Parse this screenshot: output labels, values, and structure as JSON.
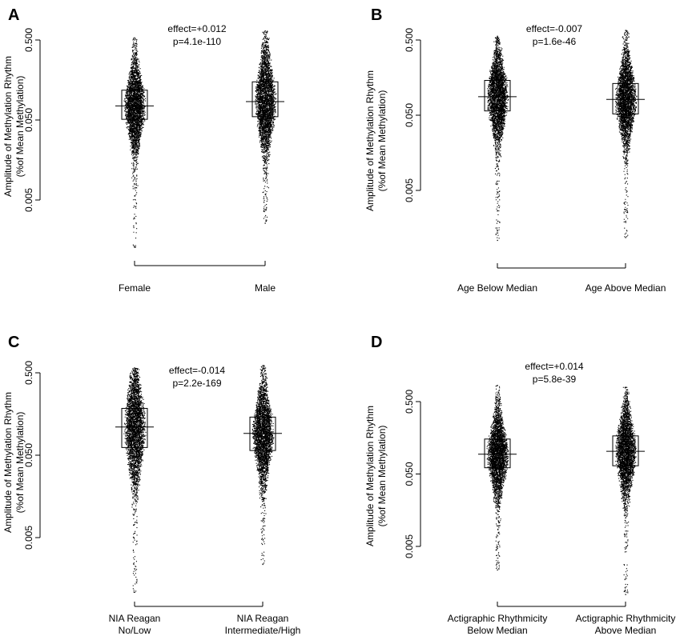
{
  "figure": {
    "y_axis_title_line1": "Amplitude of Methylation Rhythm",
    "y_axis_title_line2": "(%of Mean Methylation)"
  },
  "chart_data": [
    {
      "type": "scatter",
      "panel": "A",
      "annotation": [
        "effect=+0.012",
        "p=4.1e-110"
      ],
      "ylabel": "Amplitude of Methylation Rhythm (%of Mean Methylation)",
      "yscale": "log",
      "yticks": [
        "0.005",
        "0.050",
        "0.500"
      ],
      "groups": [
        {
          "label": [
            "Female"
          ],
          "median": 0.075,
          "q1": 0.051,
          "q3": 0.118,
          "min": 0.0013,
          "max": 0.54
        },
        {
          "label": [
            "Male"
          ],
          "median": 0.085,
          "q1": 0.055,
          "q3": 0.15,
          "min": 0.0026,
          "max": 0.66
        }
      ]
    },
    {
      "type": "scatter",
      "panel": "B",
      "annotation": [
        "effect=-0.007",
        "p=1.6e-46"
      ],
      "ylabel": "Amplitude of Methylation Rhythm (%of Mean Methylation)",
      "yscale": "log",
      "yticks": [
        "0.005",
        "0.050",
        "0.500"
      ],
      "groups": [
        {
          "label": [
            "Age Below Median"
          ],
          "median": 0.088,
          "q1": 0.057,
          "q3": 0.145,
          "min": 0.0011,
          "max": 0.57
        },
        {
          "label": [
            "Age Above Median"
          ],
          "median": 0.081,
          "q1": 0.052,
          "q3": 0.132,
          "min": 0.0012,
          "max": 0.68
        }
      ]
    },
    {
      "type": "scatter",
      "panel": "C",
      "annotation": [
        "effect=-0.014",
        "p=2.2e-169"
      ],
      "ylabel": "Amplitude of Methylation Rhythm (%of Mean Methylation)",
      "yscale": "log",
      "yticks": [
        "0.005",
        "0.050",
        "0.500"
      ],
      "groups": [
        {
          "label": [
            "NIA Reagan",
            "No/Low"
          ],
          "median": 0.11,
          "q1": 0.062,
          "q3": 0.185,
          "min": 0.0011,
          "max": 0.58
        },
        {
          "label": [
            "NIA Reagan",
            "Intermediate/High"
          ],
          "median": 0.092,
          "q1": 0.057,
          "q3": 0.145,
          "min": 0.0024,
          "max": 0.62
        }
      ]
    },
    {
      "type": "scatter",
      "panel": "D",
      "annotation": [
        "effect=+0.014",
        "p=5.8e-39"
      ],
      "ylabel": "Amplitude of Methylation Rhythm (%of Mean Methylation)",
      "yscale": "log",
      "yticks": [
        "0.005",
        "0.050",
        "0.500"
      ],
      "groups": [
        {
          "label": [
            "Actigraphic Rhythmicity",
            "Below Median"
          ],
          "median": 0.094,
          "q1": 0.061,
          "q3": 0.152,
          "min": 0.0024,
          "max": 0.85
        },
        {
          "label": [
            "Actigraphic Rhythmicity",
            "Above Median"
          ],
          "median": 0.103,
          "q1": 0.065,
          "q3": 0.168,
          "min": 0.0011,
          "max": 0.8
        }
      ]
    }
  ]
}
